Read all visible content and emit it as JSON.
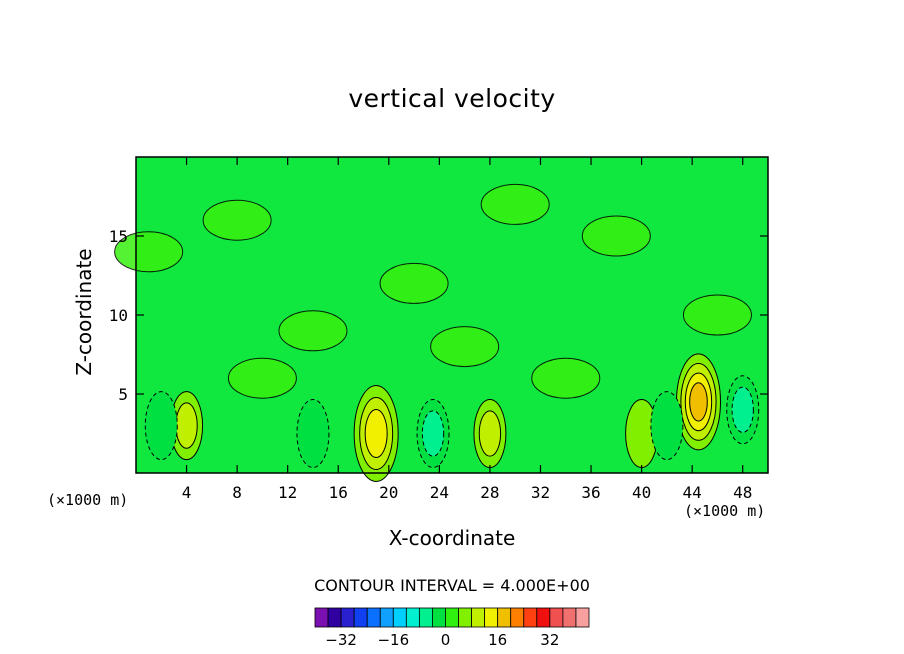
{
  "title": "vertical velocity",
  "contour_interval": "CONTOUR INTERVAL = 4.000E+00",
  "x_unit_left": "(×1000 m)",
  "x_unit_right": "(×1000 m)",
  "chart_data": {
    "type": "heatmap",
    "title": "vertical velocity",
    "xlabel": "X-coordinate",
    "ylabel": "Z-coordinate",
    "x_unit": "(×1000 m)",
    "xlim": [
      0,
      50
    ],
    "ylim": [
      0,
      20
    ],
    "x_ticks": [
      4,
      8,
      12,
      16,
      20,
      24,
      28,
      32,
      36,
      40,
      44,
      48
    ],
    "y_ticks": [
      5,
      10,
      15
    ],
    "contour_interval": 4.0,
    "field_description_cells": [
      {
        "x": 4,
        "z": 3,
        "value": 8
      },
      {
        "x": 19,
        "z": 2.5,
        "value": 12
      },
      {
        "x": 28,
        "z": 2.5,
        "value": 6
      },
      {
        "x": 40,
        "z": 2.5,
        "value": 5
      },
      {
        "x": 44.5,
        "z": 4.5,
        "value": 14
      },
      {
        "x": 48,
        "z": 4,
        "value": -10
      },
      {
        "x": 14,
        "z": 2.5,
        "value": -6
      },
      {
        "x": 23.5,
        "z": 2.5,
        "value": -7
      },
      {
        "x": 2,
        "z": 3,
        "value": -5
      },
      {
        "x": 42,
        "z": 3,
        "value": -6
      }
    ],
    "colorbar": {
      "ticks": [
        -32,
        -16,
        0,
        16,
        32
      ],
      "tick_labels": [
        "−32",
        "−16",
        "0",
        "16",
        "32"
      ],
      "colors": [
        "#7a10b0",
        "#3000a0",
        "#2a20d0",
        "#1040f0",
        "#0a70ff",
        "#10a0ff",
        "#00d0ff",
        "#00f0d0",
        "#00f090",
        "#00e040",
        "#30f010",
        "#80f000",
        "#c0f000",
        "#f0f000",
        "#f0c000",
        "#ff8000",
        "#ff4010",
        "#f01010",
        "#f05050",
        "#f07070",
        "#f8a0a0"
      ]
    }
  }
}
